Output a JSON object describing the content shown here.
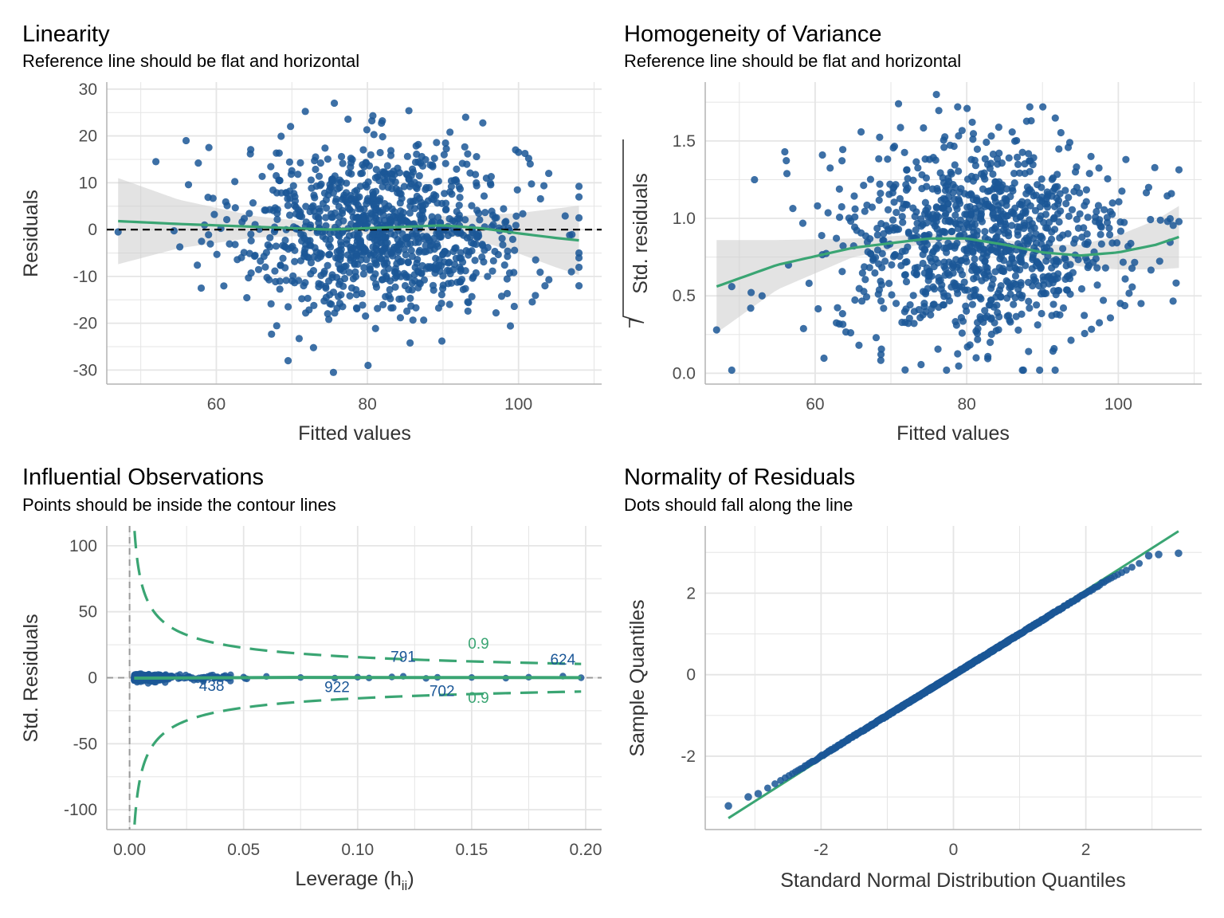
{
  "colors": {
    "points": "#1b5797",
    "smooth": "#3aa573",
    "band": "#cccccc",
    "grid": "#e5e5e5",
    "axis": "#b3b3b3",
    "tick_text": "#4d4d4d",
    "reference": "#000000",
    "leverage_zero": "#999999"
  },
  "chart_data": [
    {
      "id": "linearity",
      "type": "scatter",
      "title": "Linearity",
      "subtitle": "Reference line should be flat and horizontal",
      "xlabel": "Fitted values",
      "ylabel": "Residuals",
      "xlim": [
        45.5,
        111
      ],
      "ylim": [
        -33,
        31.5
      ],
      "xticks": [
        60,
        80,
        100
      ],
      "yticks": [
        -30,
        -20,
        -10,
        0,
        10,
        20,
        30
      ],
      "xtick_labels": [
        "60",
        "80",
        "100"
      ],
      "ytick_labels": [
        "-30",
        "-20",
        "-10",
        "0",
        "10",
        "20",
        "30"
      ],
      "grid": true,
      "reference_line": {
        "y": 0,
        "style": "dashed"
      },
      "point_cloud": {
        "n": 1000,
        "x_center": 82,
        "x_sd": 9.5,
        "y_center": 0,
        "y_sd": 9
      },
      "outliers": [
        [
          47,
          -0.5
        ],
        [
          52,
          14.5
        ],
        [
          56,
          19
        ],
        [
          58,
          -12.5
        ],
        [
          69.5,
          -28
        ],
        [
          75.5,
          -30.5
        ],
        [
          93,
          24
        ],
        [
          100,
          16.5
        ],
        [
          104,
          12
        ],
        [
          107,
          -9
        ],
        [
          108,
          -12
        ],
        [
          103.5,
          -12
        ]
      ],
      "smooth": {
        "x": [
          47,
          55,
          65,
          75,
          85,
          90,
          95,
          100,
          105,
          108
        ],
        "y": [
          1.8,
          1.2,
          0.6,
          0,
          0.6,
          0.9,
          0.3,
          -0.8,
          -1.8,
          -2.3
        ]
      },
      "band_halfwidth": {
        "x": [
          47,
          55,
          65,
          75,
          85,
          95,
          100,
          105,
          108
        ],
        "y": [
          9.2,
          5.2,
          2.3,
          1.2,
          1.2,
          2.8,
          4.3,
          6.3,
          7.4
        ]
      }
    },
    {
      "id": "homogeneity",
      "type": "scatter",
      "title": "Homogeneity of Variance",
      "subtitle": "Reference line should be flat and horizontal",
      "xlabel": "Fitted values",
      "ylabel": "Std. residuals",
      "ylabel_sqrt": true,
      "xlim": [
        45.5,
        111
      ],
      "ylim": [
        -0.07,
        1.88
      ],
      "xticks": [
        60,
        80,
        100
      ],
      "yticks": [
        0,
        0.5,
        1,
        1.5
      ],
      "xtick_labels": [
        "60",
        "80",
        "100"
      ],
      "ytick_labels": [
        "0.0",
        "0.5",
        "1.0",
        "1.5"
      ],
      "grid": true,
      "point_cloud": {
        "n": 1000,
        "x_center": 82,
        "x_sd": 9.5,
        "y_center": 0.85,
        "y_sd": 0.33
      },
      "outliers": [
        [
          47,
          0.28
        ],
        [
          52,
          1.25
        ],
        [
          56,
          1.43
        ],
        [
          51.5,
          0.42
        ],
        [
          53,
          0.5
        ],
        [
          76,
          1.8
        ],
        [
          71,
          1.74
        ],
        [
          101,
          1.38
        ],
        [
          104,
          1.2
        ],
        [
          107,
          1.16
        ],
        [
          106.5,
          0.98
        ],
        [
          103,
          0.45
        ]
      ],
      "smooth": {
        "x": [
          47,
          55,
          65,
          75,
          80,
          85,
          90,
          95,
          100,
          105,
          108
        ],
        "y": [
          0.56,
          0.7,
          0.81,
          0.87,
          0.87,
          0.83,
          0.78,
          0.76,
          0.78,
          0.83,
          0.88
        ]
      },
      "band_halfwidth": {
        "x": [
          47,
          55,
          65,
          75,
          85,
          95,
          100,
          105,
          108
        ],
        "y": [
          0.3,
          0.16,
          0.06,
          0.03,
          0.03,
          0.07,
          0.11,
          0.16,
          0.2
        ]
      }
    },
    {
      "id": "influential",
      "type": "scatter",
      "title": "Influential Observations",
      "subtitle": "Points should be inside the contour lines",
      "xlabel": "Leverage (h",
      "xlabel_sub": "ii",
      "xlabel_close": ")",
      "ylabel": "Std. Residuals",
      "xlim": [
        -0.01,
        0.207
      ],
      "ylim": [
        -115,
        115
      ],
      "xticks": [
        0,
        0.05,
        0.1,
        0.15,
        0.2
      ],
      "yticks": [
        -100,
        -50,
        0,
        50,
        100
      ],
      "xtick_labels": [
        "0.00",
        "0.05",
        "0.10",
        "0.15",
        "0.20"
      ],
      "ytick_labels": [
        "-100",
        "-50",
        "0",
        "50",
        "100"
      ],
      "grid": true,
      "contour_level": 0.9,
      "contour_labels": [
        {
          "text": "0.9",
          "x": 0.153,
          "y": 22
        },
        {
          "text": "0.9",
          "x": 0.153,
          "y": -19
        }
      ],
      "point_labels": [
        {
          "text": "791",
          "x": 0.12,
          "y": 12
        },
        {
          "text": "624",
          "x": 0.19,
          "y": 10
        },
        {
          "text": "438",
          "x": 0.036,
          "y": -10
        },
        {
          "text": "922",
          "x": 0.091,
          "y": -11
        },
        {
          "text": "702",
          "x": 0.137,
          "y": -14
        }
      ],
      "leverage_points": [
        [
          0.05,
          0.5
        ],
        [
          0.06,
          1
        ],
        [
          0.075,
          0.2
        ],
        [
          0.09,
          -0.3
        ],
        [
          0.1,
          0.4
        ],
        [
          0.105,
          -0.2
        ],
        [
          0.115,
          0.6
        ],
        [
          0.12,
          1.1
        ],
        [
          0.13,
          -0.5
        ],
        [
          0.135,
          0.3
        ],
        [
          0.15,
          0.2
        ],
        [
          0.165,
          -0.3
        ],
        [
          0.175,
          0.4
        ],
        [
          0.19,
          1.2
        ],
        [
          0.198,
          0
        ]
      ]
    },
    {
      "id": "normality",
      "type": "scatter",
      "title": "Normality of Residuals",
      "subtitle": "Dots should fall along the line",
      "xlabel": "Standard Normal Distribution Quantiles",
      "ylabel": "Sample Quantiles",
      "xlim": [
        -3.75,
        3.75
      ],
      "ylim": [
        -3.8,
        3.65
      ],
      "xticks": [
        -2,
        0,
        2
      ],
      "yticks": [
        -2,
        0,
        2
      ],
      "xtick_labels": [
        "-2",
        "0",
        "2"
      ],
      "ytick_labels": [
        "-2",
        "0",
        "2"
      ],
      "grid": true,
      "n": 1000,
      "reference_line": {
        "x": [
          -3.4,
          3.4
        ],
        "y": [
          -3.52,
          3.52
        ]
      },
      "tail_points": [
        [
          -3.4,
          -3.22
        ],
        [
          -3.1,
          -3.0
        ],
        [
          -2.95,
          -2.92
        ],
        [
          2.95,
          2.92
        ],
        [
          3.1,
          2.95
        ],
        [
          3.4,
          2.98
        ]
      ]
    }
  ]
}
